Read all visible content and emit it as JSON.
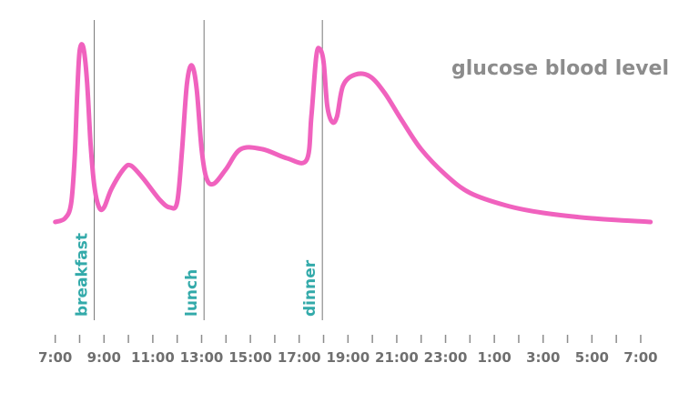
{
  "chart_data": {
    "type": "line",
    "title": "glucose blood level",
    "xlabel": "",
    "ylabel": "",
    "grid": false,
    "x_ticks": [
      {
        "label": "7:00",
        "hour": 7
      },
      {
        "label": "9:00",
        "hour": 9
      },
      {
        "label": "11:00",
        "hour": 11
      },
      {
        "label": "13:00",
        "hour": 13
      },
      {
        "label": "15:00",
        "hour": 15
      },
      {
        "label": "17:00",
        "hour": 17
      },
      {
        "label": "19:00",
        "hour": 19
      },
      {
        "label": "21:00",
        "hour": 21
      },
      {
        "label": "23:00",
        "hour": 23
      },
      {
        "label": "1:00",
        "hour": 25
      },
      {
        "label": "3:00",
        "hour": 27
      },
      {
        "label": "5:00",
        "hour": 29
      },
      {
        "label": "7:00",
        "hour": 31
      }
    ],
    "xlim": [
      6.9,
      31.3
    ],
    "ylim": [
      0,
      1
    ],
    "meals": [
      {
        "label": "breakfast",
        "hour": 8.6
      },
      {
        "label": "lunch",
        "hour": 13.1
      },
      {
        "label": "dinner",
        "hour": 17.95
      }
    ],
    "series": [
      {
        "color": "#f062be",
        "points": [
          [
            7.0,
            0.02
          ],
          [
            7.4,
            0.04
          ],
          [
            7.65,
            0.12
          ],
          [
            7.8,
            0.38
          ],
          [
            7.9,
            0.72
          ],
          [
            8.0,
            0.96
          ],
          [
            8.15,
            0.98
          ],
          [
            8.3,
            0.8
          ],
          [
            8.45,
            0.45
          ],
          [
            8.6,
            0.22
          ],
          [
            8.8,
            0.1
          ],
          [
            9.0,
            0.1
          ],
          [
            9.3,
            0.2
          ],
          [
            9.8,
            0.31
          ],
          [
            10.1,
            0.33
          ],
          [
            10.6,
            0.26
          ],
          [
            11.3,
            0.14
          ],
          [
            11.7,
            0.1
          ],
          [
            12.0,
            0.13
          ],
          [
            12.2,
            0.42
          ],
          [
            12.4,
            0.78
          ],
          [
            12.6,
            0.88
          ],
          [
            12.8,
            0.75
          ],
          [
            13.0,
            0.42
          ],
          [
            13.2,
            0.26
          ],
          [
            13.5,
            0.23
          ],
          [
            14.0,
            0.31
          ],
          [
            14.6,
            0.42
          ],
          [
            15.5,
            0.42
          ],
          [
            16.5,
            0.37
          ],
          [
            17.3,
            0.36
          ],
          [
            17.5,
            0.6
          ],
          [
            17.7,
            0.93
          ],
          [
            17.85,
            0.97
          ],
          [
            18.0,
            0.9
          ],
          [
            18.15,
            0.66
          ],
          [
            18.35,
            0.57
          ],
          [
            18.55,
            0.6
          ],
          [
            18.8,
            0.77
          ],
          [
            19.3,
            0.83
          ],
          [
            19.9,
            0.82
          ],
          [
            20.5,
            0.73
          ],
          [
            21.2,
            0.58
          ],
          [
            22.0,
            0.42
          ],
          [
            23.0,
            0.28
          ],
          [
            24.0,
            0.18
          ],
          [
            25.5,
            0.11
          ],
          [
            27.0,
            0.07
          ],
          [
            29.0,
            0.04
          ],
          [
            31.4,
            0.02
          ]
        ]
      }
    ]
  }
}
